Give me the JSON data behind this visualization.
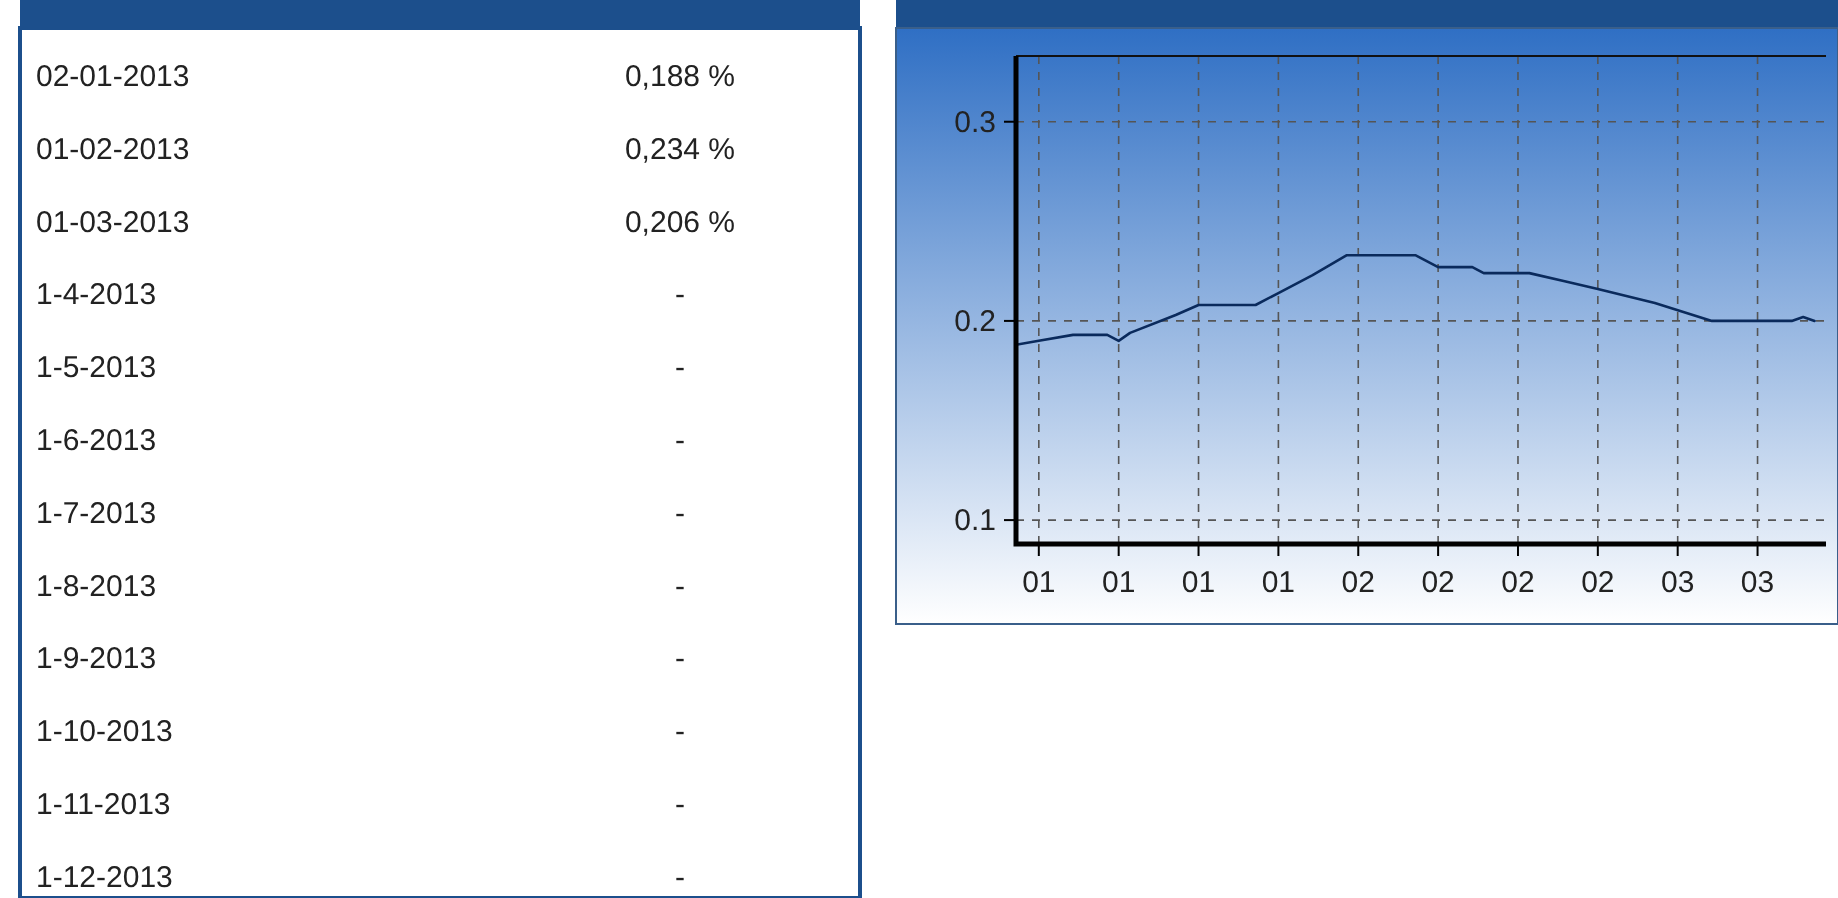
{
  "chart_data": [
    {
      "type": "other",
      "categories": [
        "02-01-2013",
        "01-02-2013",
        "01-03-2013",
        "1-4-2013",
        "1-5-2013",
        "1-6-2013",
        "1-7-2013",
        "1-8-2013",
        "1-9-2013",
        "1-10-2013",
        "1-11-2013",
        "1-12-2013"
      ],
      "value_labels": [
        "0,188 %",
        "0,234 %",
        "0,206 %",
        "-",
        "-",
        "-",
        "-",
        "-",
        "-",
        "-",
        "-",
        "-"
      ]
    },
    {
      "type": "line",
      "x": [
        "2013-01-02",
        "2013-01-04",
        "2013-01-07",
        "2013-01-10",
        "2013-01-11",
        "2013-01-12",
        "2013-01-16",
        "2013-01-18",
        "2013-01-23",
        "2013-01-25",
        "2013-01-28",
        "2013-01-31",
        "2013-02-06",
        "2013-02-08",
        "2013-02-11",
        "2013-02-12",
        "2013-02-16",
        "2013-02-19",
        "2013-02-22",
        "2013-02-27",
        "2013-03-04",
        "2013-03-11",
        "2013-03-12",
        "2013-03-13"
      ],
      "series": [
        {
          "color": "#0a2a5c",
          "values": [
            0.188,
            0.19,
            0.193,
            0.193,
            0.19,
            0.194,
            0.203,
            0.208,
            0.208,
            0.214,
            0.223,
            0.233,
            0.233,
            0.227,
            0.227,
            0.224,
            0.224,
            0.22,
            0.216,
            0.209,
            0.2,
            0.2,
            0.202,
            0.2
          ]
        }
      ],
      "xlim": [
        "2013-01-02",
        "2013-03-14"
      ],
      "xticks": [
        {
          "value": "2013-01-04",
          "label": "01"
        },
        {
          "value": "2013-01-11",
          "label": "01"
        },
        {
          "value": "2013-01-18",
          "label": "01"
        },
        {
          "value": "2013-01-25",
          "label": "01"
        },
        {
          "value": "2013-02-01",
          "label": "02"
        },
        {
          "value": "2013-02-08",
          "label": "02"
        },
        {
          "value": "2013-02-15",
          "label": "02"
        },
        {
          "value": "2013-02-22",
          "label": "02"
        },
        {
          "value": "2013-03-01",
          "label": "03"
        },
        {
          "value": "2013-03-08",
          "label": "03"
        }
      ],
      "ylim": [
        0.088,
        0.333
      ],
      "yticks": [
        0.1,
        0.2,
        0.3
      ],
      "grid": true,
      "marker": "none",
      "line_style": "solid"
    }
  ]
}
